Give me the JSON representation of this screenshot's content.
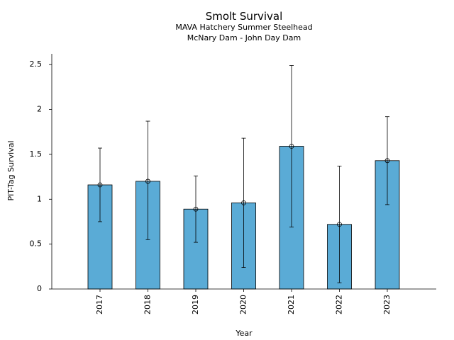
{
  "chart_data": {
    "type": "bar",
    "title": "Smolt Survival",
    "subtitle_lines": [
      "MAVA Hatchery Summer Steelhead",
      "McNary Dam - John Day Dam"
    ],
    "xlabel": "Year",
    "ylabel": "PIT-Tag Survival",
    "categories": [
      "2017",
      "2018",
      "2019",
      "2020",
      "2021",
      "2022",
      "2023"
    ],
    "series": [
      {
        "values": [
          1.16,
          1.2,
          0.89,
          0.96,
          1.59,
          0.72,
          1.43
        ],
        "error_low": [
          0.75,
          0.55,
          0.52,
          0.24,
          0.69,
          0.07,
          0.94
        ],
        "error_high": [
          1.57,
          1.87,
          1.26,
          1.68,
          2.49,
          1.37,
          1.92
        ]
      }
    ],
    "ylim": [
      0,
      2.62
    ],
    "yticks": [
      0,
      0.5,
      1,
      1.5,
      2,
      2.5
    ],
    "ytick_labels": [
      "0",
      "0.5",
      "1",
      "1.5",
      "2",
      "2.5"
    ],
    "grid": false,
    "colors": {
      "bar": "#5aabd6",
      "edge": "#000000"
    }
  }
}
